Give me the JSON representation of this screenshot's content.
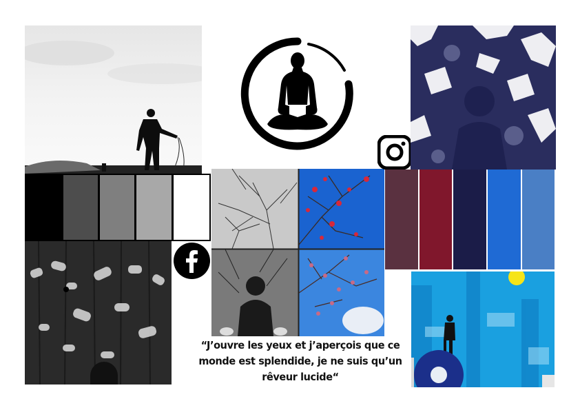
{
  "quote": {
    "text": "“J’ouvre les yeux et j’aperçois que ce monde est splendide, je ne suis qu’un rêveur lucide“"
  },
  "logo": {
    "icon": "meditation-enso-logo"
  },
  "social": {
    "facebook_icon": "facebook-icon",
    "instagram_icon": "instagram-icon"
  },
  "palettes": {
    "monochrome": [
      "#000000",
      "#4d4d4d",
      "#7f7f7f",
      "#a8a8a8",
      "#ffffff"
    ],
    "colour": [
      "#5a3140",
      "#80172c",
      "#1b1c48",
      "#1f6ad4",
      "#4a7fc5"
    ]
  }
}
